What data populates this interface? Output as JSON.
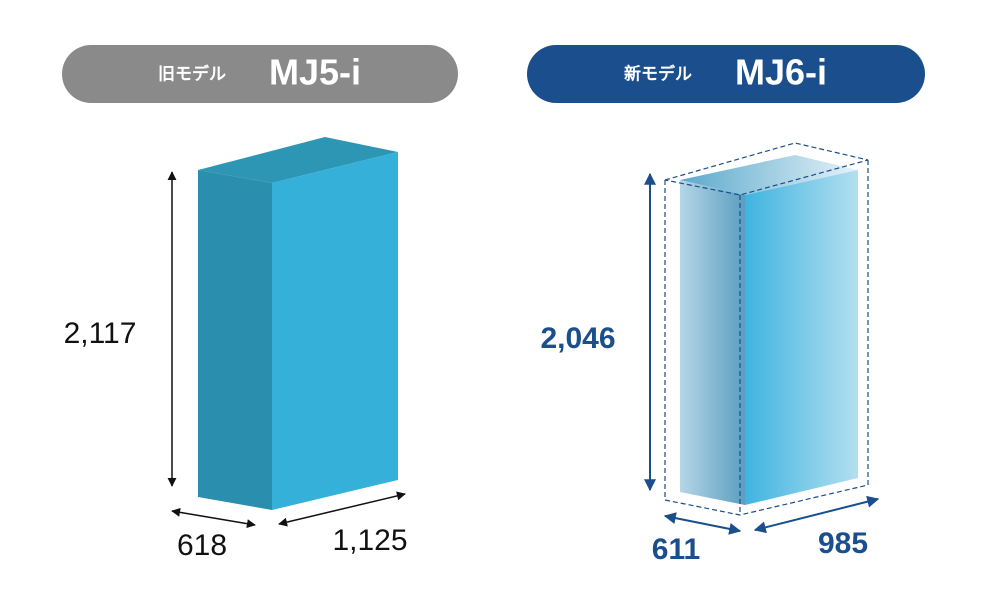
{
  "models": [
    {
      "prefix": "旧モデル",
      "name": "MJ5-i",
      "height": "2,117",
      "depth": "618",
      "width": "1,125"
    },
    {
      "prefix": "新モデル",
      "name": "MJ6-i",
      "height": "2,046",
      "depth": "611",
      "width": "985"
    }
  ]
}
